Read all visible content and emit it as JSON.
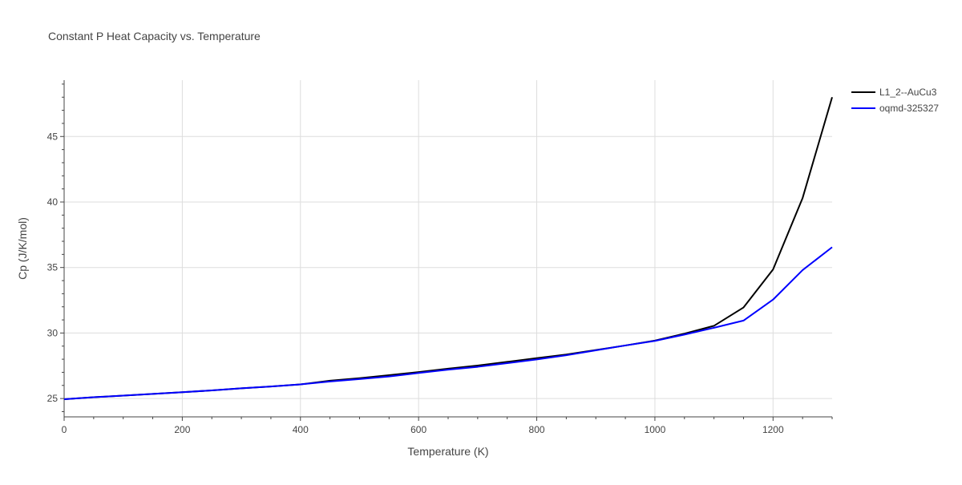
{
  "chart_data": {
    "type": "line",
    "title": "Constant P Heat Capacity vs. Temperature",
    "xlabel": "Temperature (K)",
    "ylabel": "Cp (J/K/mol)",
    "xlim": [
      0,
      1300
    ],
    "ylim": [
      23.6,
      49.3
    ],
    "x_ticks": [
      0,
      200,
      400,
      600,
      800,
      1000,
      1200
    ],
    "y_ticks": [
      25,
      30,
      35,
      40,
      45
    ],
    "grid": true,
    "legend_position": "top-right",
    "series": [
      {
        "name": "L1_2--AuCu3",
        "color": "#000000",
        "x": [
          0,
          50,
          100,
          150,
          200,
          250,
          300,
          350,
          400,
          450,
          500,
          550,
          600,
          650,
          700,
          750,
          800,
          850,
          900,
          950,
          1000,
          1050,
          1100,
          1150,
          1200,
          1250,
          1300
        ],
        "y": [
          24.95,
          25.1,
          25.22,
          25.35,
          25.48,
          25.62,
          25.78,
          25.92,
          26.08,
          26.36,
          26.55,
          26.78,
          27.02,
          27.28,
          27.52,
          27.8,
          28.08,
          28.36,
          28.7,
          29.05,
          29.42,
          29.95,
          30.55,
          31.95,
          34.85,
          40.3,
          48.0
        ]
      },
      {
        "name": "oqmd-325327",
        "color": "#0000ff",
        "x": [
          0,
          50,
          100,
          150,
          200,
          250,
          300,
          350,
          400,
          450,
          500,
          550,
          600,
          650,
          700,
          750,
          800,
          850,
          900,
          950,
          1000,
          1050,
          1100,
          1150,
          1200,
          1250,
          1300
        ],
        "y": [
          24.95,
          25.1,
          25.22,
          25.35,
          25.48,
          25.62,
          25.78,
          25.92,
          26.08,
          26.3,
          26.48,
          26.68,
          26.95,
          27.2,
          27.42,
          27.7,
          27.98,
          28.3,
          28.68,
          29.05,
          29.4,
          29.88,
          30.4,
          30.95,
          32.55,
          34.8,
          36.55
        ]
      }
    ]
  }
}
